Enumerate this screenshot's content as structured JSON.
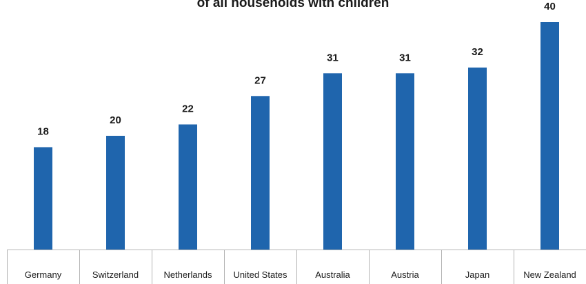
{
  "chart_data": {
    "type": "bar",
    "title": "of all households with children",
    "categories": [
      "Germany",
      "Switzerland",
      "Netherlands",
      "United States",
      "Australia",
      "Austria",
      "Japan",
      "New Zealand"
    ],
    "values": [
      18,
      20,
      22,
      27,
      31,
      31,
      32,
      40
    ],
    "data_labels": [
      "18",
      "20",
      "22",
      "27",
      "31",
      "31",
      "32",
      "40"
    ],
    "xlabel": "",
    "ylabel": "",
    "ylim": [
      0,
      40
    ],
    "grid": false,
    "legend": "none",
    "bar_color": "#1f65ad",
    "axis_color": "#b3b3b3"
  }
}
